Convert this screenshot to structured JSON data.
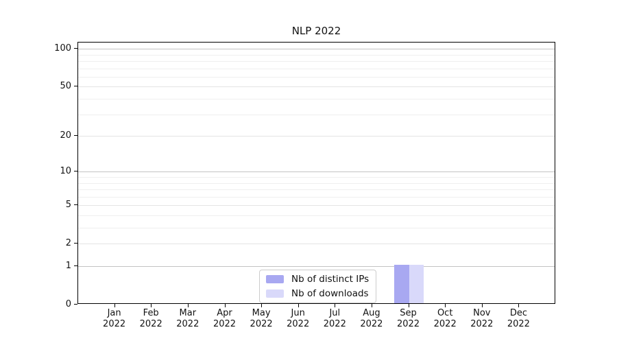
{
  "chart_data": {
    "type": "bar",
    "title": "NLP 2022",
    "categories": [
      "Jan",
      "Feb",
      "Mar",
      "Apr",
      "May",
      "Jun",
      "Jul",
      "Aug",
      "Sep",
      "Oct",
      "Nov",
      "Dec"
    ],
    "year": "2022",
    "series": [
      {
        "name": "Nb of distinct IPs",
        "color": "#a8a8f1",
        "values": [
          0,
          0,
          0,
          0,
          0,
          0,
          0,
          0,
          1,
          0,
          0,
          0
        ]
      },
      {
        "name": "Nb of downloads",
        "color": "#d9d9fa",
        "values": [
          0,
          0,
          0,
          0,
          0,
          0,
          0,
          0,
          1,
          0,
          0,
          0
        ]
      }
    ],
    "xlabel": "",
    "ylabel": "",
    "yscale": "log1p",
    "ylim": [
      0,
      112
    ],
    "y_major_ticks": [
      0,
      1,
      2,
      5,
      10,
      20,
      50,
      100
    ],
    "y_minor_ticks": [
      3,
      4,
      6,
      7,
      8,
      9,
      30,
      40,
      60,
      70,
      80,
      90
    ],
    "grid": true,
    "legend_position": "lower center"
  },
  "colors": {
    "spine": "#000000",
    "grid_power_of_ten": "#c3c3c3",
    "grid_major": "#e4e4e4",
    "grid_minor": "#efefef",
    "legend_border": "#cccccc",
    "bar_distinct_ips": "#a8a8f1",
    "bar_downloads": "#d9d9fa"
  }
}
